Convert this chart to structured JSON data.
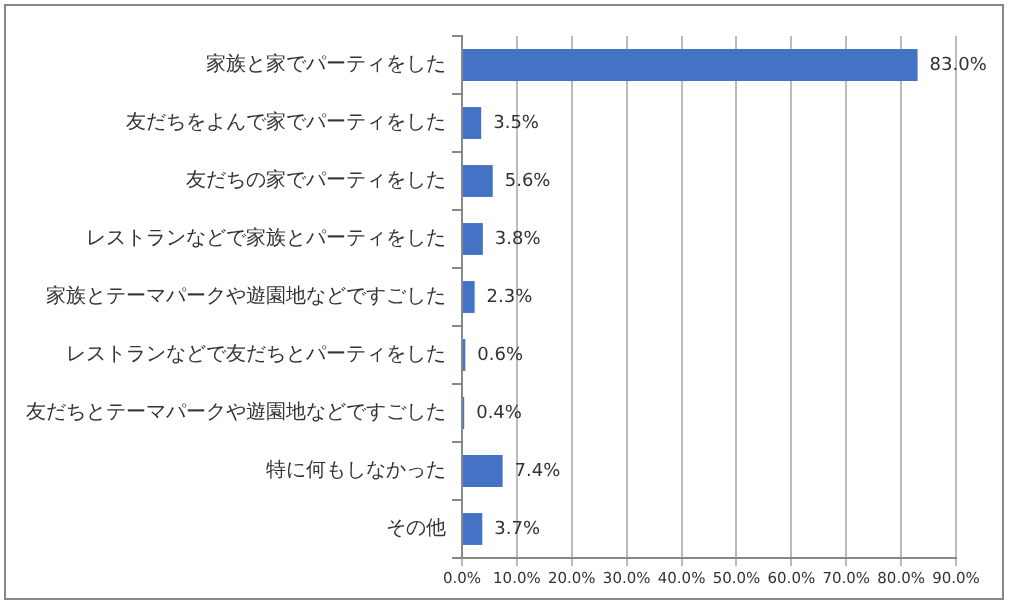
{
  "chart_data": {
    "type": "bar",
    "orientation": "horizontal",
    "categories": [
      "家族と家でパーティをした",
      "友だちをよんで家でパーティをした",
      "友だちの家でパーティをした",
      "レストランなどで家族とパーティをした",
      "家族とテーマパークや遊園地などですごした",
      "レストランなどで友だちとパーティをした",
      "友だちとテーマパークや遊園地などですごした",
      "特に何もしなかった",
      "その他"
    ],
    "values": [
      83.0,
      3.5,
      5.6,
      3.8,
      2.3,
      0.6,
      0.4,
      7.4,
      3.7
    ],
    "value_labels": [
      "83.0%",
      "3.5%",
      "5.6%",
      "3.8%",
      "2.3%",
      "0.6%",
      "0.4%",
      "7.4%",
      "3.7%"
    ],
    "color": "#4472c4",
    "xlim": [
      0,
      90
    ],
    "xticks": [
      {
        "value": 0,
        "label": "0.0%"
      },
      {
        "value": 10,
        "label": "10.0%"
      },
      {
        "value": 20,
        "label": "20.0%"
      },
      {
        "value": 30,
        "label": "30.0%"
      },
      {
        "value": 40,
        "label": "40.0%"
      },
      {
        "value": 50,
        "label": "50.0%"
      },
      {
        "value": 60,
        "label": "60.0%"
      },
      {
        "value": 70,
        "label": "70.0%"
      },
      {
        "value": 80,
        "label": "80.0%"
      },
      {
        "value": 90,
        "label": "90.0%"
      }
    ],
    "grid": "x",
    "legend": false
  }
}
